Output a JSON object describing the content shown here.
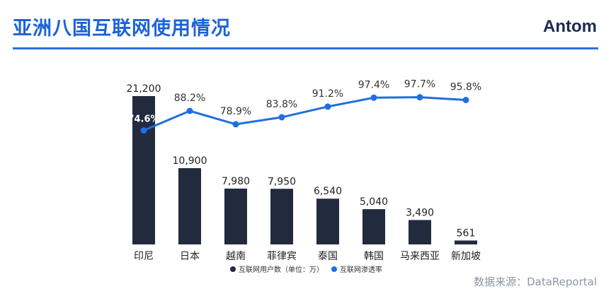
{
  "title": "亚洲八国互联网使用情况",
  "logo": "Antom",
  "source": "数据来源：DataReportal",
  "colors": {
    "bar": "#222a3e",
    "line": "#1f6fe0",
    "accent": "#1b63d6"
  },
  "chart_data": {
    "type": "bar",
    "categories": [
      "印尼",
      "日本",
      "越南",
      "菲律宾",
      "泰国",
      "韩国",
      "马来西亚",
      "新加坡"
    ],
    "series": [
      {
        "name": "互联网用户数（单位：万）",
        "type": "bar",
        "values": [
          21200,
          10900,
          7980,
          7950,
          6540,
          5040,
          3490,
          561
        ],
        "labels": [
          "21,200",
          "10,900",
          "7,980",
          "7,950",
          "6,540",
          "5,040",
          "3,490",
          "561"
        ]
      },
      {
        "name": "互联网渗透率",
        "type": "line",
        "values": [
          74.6,
          88.2,
          78.9,
          83.8,
          91.2,
          97.4,
          97.7,
          95.8
        ],
        "labels": [
          "74.6%",
          "88.2%",
          "78.9%",
          "83.8%",
          "91.2%",
          "97.4%",
          "97.7%",
          "95.8%"
        ]
      }
    ],
    "legend_position": "bottom",
    "grid": false
  }
}
